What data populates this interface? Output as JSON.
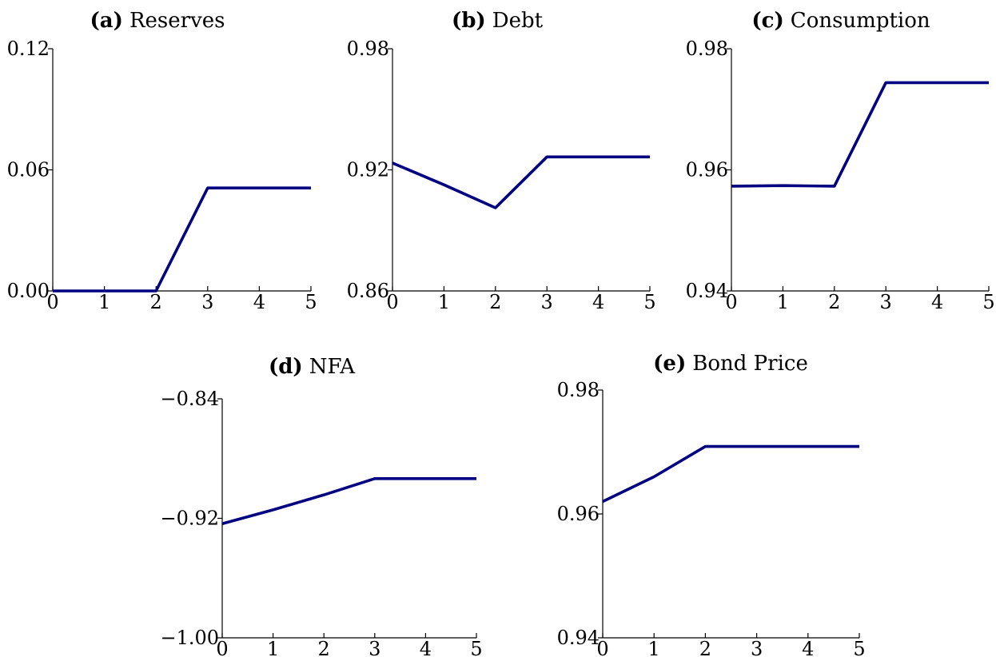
{
  "chart_data": [
    {
      "type": "line",
      "panel_letter": "(a)",
      "title": "Reserves",
      "x": [
        0,
        1,
        2,
        3,
        4,
        5
      ],
      "series": [
        {
          "values": [
            0.0,
            0.0,
            0.0,
            0.051,
            0.051,
            0.051
          ]
        }
      ],
      "xlim": [
        0,
        5
      ],
      "ylim": [
        0.0,
        0.12
      ],
      "xticks": [
        "0",
        "1",
        "2",
        "3",
        "4",
        "5"
      ],
      "yticks": [
        "0.00",
        "0.06",
        "0.12"
      ],
      "ytick_values": [
        0.0,
        0.06,
        0.12
      ],
      "grid": false,
      "color": "#000080"
    },
    {
      "type": "line",
      "panel_letter": "(b)",
      "title": "Debt",
      "x": [
        0,
        1,
        2,
        3,
        4,
        5
      ],
      "series": [
        {
          "values": [
            0.9234,
            0.9126,
            0.9012,
            0.9264,
            0.9264,
            0.9264
          ]
        }
      ],
      "xlim": [
        0,
        5
      ],
      "ylim": [
        0.86,
        0.98
      ],
      "xticks": [
        "0",
        "1",
        "2",
        "3",
        "4",
        "5"
      ],
      "yticks": [
        "0.86",
        "0.92",
        "0.98"
      ],
      "ytick_values": [
        0.86,
        0.92,
        0.98
      ],
      "grid": false,
      "color": "#000080"
    },
    {
      "type": "line",
      "panel_letter": "(c)",
      "title": "Consumption",
      "x": [
        0,
        1,
        2,
        3,
        4,
        5
      ],
      "series": [
        {
          "values": [
            0.9573,
            0.9574,
            0.9573,
            0.9744,
            0.9744,
            0.9744
          ]
        }
      ],
      "xlim": [
        0,
        5
      ],
      "ylim": [
        0.94,
        0.98
      ],
      "xticks": [
        "0",
        "1",
        "2",
        "3",
        "4",
        "5"
      ],
      "yticks": [
        "0.94",
        "0.96",
        "0.98"
      ],
      "ytick_values": [
        0.94,
        0.96,
        0.98
      ],
      "grid": false,
      "color": "#000080"
    },
    {
      "type": "line",
      "panel_letter": "(d)",
      "title": "NFA",
      "x": [
        0,
        1,
        2,
        3,
        4,
        5
      ],
      "series": [
        {
          "values": [
            -0.9236,
            -0.9143,
            -0.9043,
            -0.8934,
            -0.8934,
            -0.8934
          ]
        }
      ],
      "xlim": [
        0,
        5
      ],
      "ylim": [
        -1.0,
        -0.84
      ],
      "xticks": [
        "0",
        "1",
        "2",
        "3",
        "4",
        "5"
      ],
      "yticks": [
        "−1.00",
        "−0.92",
        "−0.84"
      ],
      "ytick_values": [
        -1.0,
        -0.92,
        -0.84
      ],
      "grid": false,
      "color": "#000080"
    },
    {
      "type": "line",
      "panel_letter": "(e)",
      "title": "Bond Price",
      "x": [
        0,
        1,
        2,
        3,
        4,
        5
      ],
      "series": [
        {
          "values": [
            0.962,
            0.966,
            0.9709,
            0.9709,
            0.9709,
            0.9709
          ]
        }
      ],
      "xlim": [
        0,
        5
      ],
      "ylim": [
        0.94,
        0.98
      ],
      "xticks": [
        "0",
        "1",
        "2",
        "3",
        "4",
        "5"
      ],
      "yticks": [
        "0.94",
        "0.96",
        "0.98"
      ],
      "ytick_values": [
        0.94,
        0.96,
        0.98
      ],
      "grid": false,
      "color": "#000080"
    }
  ]
}
